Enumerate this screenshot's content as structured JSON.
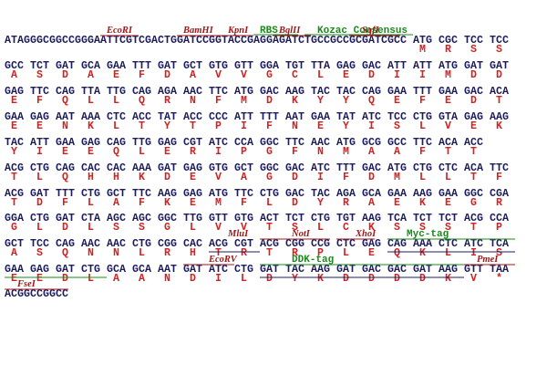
{
  "rows": [
    {
      "leader": "ATAGGGCGGCCGGGAATTCGTCGACTGGATCCGGTACCGAGGAGATCTGCCGCCGCGATCGCC",
      "codons": [
        "ATG",
        "CGC",
        "TCC",
        "TCC"
      ],
      "aa": [
        "M",
        "R",
        "S",
        "S"
      ],
      "features": [
        "EcoRI",
        "BamHI",
        "KpnI",
        "RBS",
        "BglII",
        "Kozac Consensus",
        "SgfI"
      ]
    },
    {
      "codons": [
        "GCC",
        "TCT",
        "GAT",
        "GCA",
        "GAA",
        "TTT",
        "GAT",
        "GCT",
        "GTG",
        "GTT",
        "GGA",
        "TGT",
        "TTA",
        "GAG",
        "GAC",
        "ATT",
        "ATT",
        "ATG",
        "GAT",
        "GAT"
      ],
      "aa": [
        "A",
        "S",
        "D",
        "A",
        "E",
        "F",
        "D",
        "A",
        "V",
        "V",
        "G",
        "C",
        "L",
        "E",
        "D",
        "I",
        "I",
        "M",
        "D",
        "D"
      ]
    },
    {
      "codons": [
        "GAG",
        "TTC",
        "CAG",
        "TTA",
        "TTG",
        "CAG",
        "AGA",
        "AAC",
        "TTC",
        "ATG",
        "GAC",
        "AAG",
        "TAC",
        "TAC",
        "CAG",
        "GAA",
        "TTT",
        "GAA",
        "GAC",
        "ACA"
      ],
      "aa": [
        "E",
        "F",
        "Q",
        "L",
        "L",
        "Q",
        "R",
        "N",
        "F",
        "M",
        "D",
        "K",
        "Y",
        "Y",
        "Q",
        "E",
        "F",
        "E",
        "D",
        "T"
      ]
    },
    {
      "codons": [
        "GAA",
        "GAG",
        "AAT",
        "AAA",
        "CTC",
        "ACC",
        "TAT",
        "ACC",
        "CCC",
        "ATT",
        "TTT",
        "AAT",
        "GAA",
        "TAT",
        "ATC",
        "TCC",
        "CTG",
        "GTA",
        "GAG",
        "AAG"
      ],
      "aa": [
        "E",
        "E",
        "N",
        "K",
        "L",
        "T",
        "Y",
        "T",
        "P",
        "I",
        "F",
        "N",
        "E",
        "Y",
        "I",
        "S",
        "L",
        "V",
        "E",
        "K"
      ]
    },
    {
      "codons": [
        "TAC",
        "ATT",
        "GAA",
        "GAG",
        "CAG",
        "TTG",
        "GAG",
        "CGT",
        "ATC",
        "CCA",
        "GGC",
        "TTC",
        "AAC",
        "ATG",
        "GCG",
        "GCC",
        "TTC",
        "ACA",
        "ACC"
      ],
      "aa": [
        "Y",
        "I",
        "E",
        "E",
        "Q",
        "L",
        "E",
        "R",
        "I",
        "P",
        "G",
        "F",
        "N",
        "M",
        "A",
        "A",
        "F",
        "T",
        "T"
      ]
    },
    {
      "codons": [
        "ACG",
        "CTG",
        "CAG",
        "CAC",
        "CAC",
        "AAA",
        "GAT",
        "GAG",
        "GTG",
        "GCT",
        "GGC",
        "GAC",
        "ATC",
        "TTT",
        "GAC",
        "ATG",
        "CTG",
        "CTC",
        "ACA",
        "TTC"
      ],
      "aa": [
        "T",
        "L",
        "Q",
        "H",
        "H",
        "K",
        "D",
        "E",
        "V",
        "A",
        "G",
        "D",
        "I",
        "F",
        "D",
        "M",
        "L",
        "L",
        "T",
        "F"
      ]
    },
    {
      "codons": [
        "ACG",
        "GAT",
        "TTT",
        "CTG",
        "GCT",
        "TTC",
        "AAG",
        "GAG",
        "ATG",
        "TTC",
        "CTG",
        "GAC",
        "TAC",
        "AGA",
        "GCA",
        "GAA",
        "AAG",
        "GAA",
        "GGC",
        "CGA"
      ],
      "aa": [
        "T",
        "D",
        "F",
        "L",
        "A",
        "F",
        "K",
        "E",
        "M",
        "F",
        "L",
        "D",
        "Y",
        "R",
        "A",
        "E",
        "K",
        "E",
        "G",
        "R"
      ]
    },
    {
      "codons": [
        "GGA",
        "CTG",
        "GAT",
        "CTA",
        "AGC",
        "AGC",
        "GGC",
        "TTG",
        "GTT",
        "GTG",
        "ACT",
        "TCT",
        "CTG",
        "TGT",
        "AAG",
        "TCA",
        "TCT",
        "TCT",
        "ACG",
        "CCA"
      ],
      "aa": [
        "G",
        "L",
        "D",
        "L",
        "S",
        "S",
        "G",
        "L",
        "V",
        "V",
        "T",
        "S",
        "L",
        "C",
        "K",
        "S",
        "S",
        "S",
        "T",
        "P"
      ]
    },
    {
      "codons": [
        "GCT",
        "TCC",
        "CAG",
        "AAC",
        "AAC",
        "CTG",
        "CGG",
        "CAC",
        "ACG",
        "CGT",
        "ACG",
        "CGG",
        "CCG",
        "CTC",
        "GAG",
        "CAG",
        "AAA",
        "CTC",
        "ATC",
        "TCA"
      ],
      "aa": [
        "A",
        "S",
        "Q",
        "N",
        "N",
        "L",
        "R",
        "H",
        "T",
        "R",
        "T",
        "R",
        "P",
        "L",
        "E",
        "Q",
        "K",
        "L",
        "I",
        "S"
      ],
      "features": [
        "MluI",
        "NotI",
        "XhoI",
        "Myc-tag"
      ]
    },
    {
      "codons": [
        "GAA",
        "GAG",
        "GAT",
        "CTG",
        "GCA",
        "GCA",
        "AAT",
        "GAT",
        "ATC",
        "CTG",
        "GAT",
        "TAC",
        "AAG",
        "GAT",
        "GAC",
        "GAC",
        "GAT",
        "AAG",
        "GTT",
        "TAA"
      ],
      "aa": [
        "E",
        "E",
        "D",
        "L",
        "A",
        "A",
        "N",
        "D",
        "I",
        "L",
        "D",
        "Y",
        "K",
        "D",
        "D",
        "D",
        "D",
        "K",
        "V",
        "*"
      ],
      "features": [
        "EcoRV",
        "DDK-tag",
        "PmeI"
      ]
    },
    {
      "leader": "ACGGCCGGCC",
      "features": [
        "FseI"
      ]
    }
  ]
}
